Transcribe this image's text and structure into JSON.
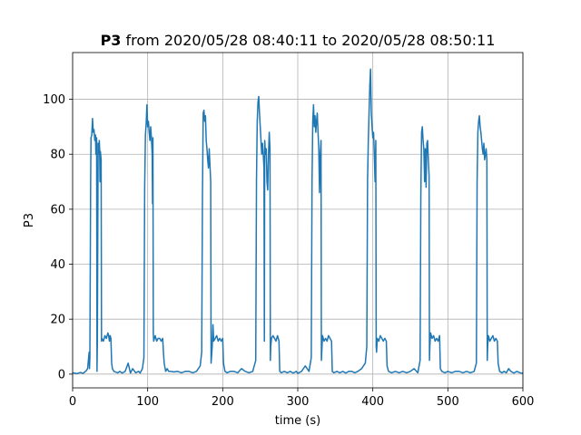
{
  "chart_data": {
    "type": "line",
    "title_bold": "P3",
    "title_rest": " from 2020/05/28 08:40:11 to 2020/05/28 08:50:11",
    "xlabel": "time (s)",
    "ylabel": "P3",
    "xlim": [
      0,
      600
    ],
    "ylim": [
      -5,
      117
    ],
    "xticks": [
      0,
      100,
      200,
      300,
      400,
      500,
      600
    ],
    "yticks": [
      0,
      20,
      40,
      60,
      80,
      100
    ],
    "grid": true,
    "series": [
      {
        "color": "#1f77b4",
        "points": [
          [
            0,
            0.5
          ],
          [
            6,
            0.2
          ],
          [
            10,
            0.6
          ],
          [
            14,
            0.3
          ],
          [
            18,
            1.2
          ],
          [
            20,
            2
          ],
          [
            21,
            5
          ],
          [
            22,
            8
          ],
          [
            22.5,
            2
          ],
          [
            23,
            6
          ],
          [
            24,
            70
          ],
          [
            24.5,
            86
          ],
          [
            25.5,
            87
          ],
          [
            26.5,
            93
          ],
          [
            27.5,
            88
          ],
          [
            28.5,
            89
          ],
          [
            29.5,
            85
          ],
          [
            30.5,
            87
          ],
          [
            31,
            80
          ],
          [
            32,
            86
          ],
          [
            32.5,
            1
          ],
          [
            33,
            12
          ],
          [
            34,
            84
          ],
          [
            35,
            80
          ],
          [
            35.5,
            85
          ],
          [
            36,
            82
          ],
          [
            36.5,
            70
          ],
          [
            37,
            81
          ],
          [
            38,
            78
          ],
          [
            38.5,
            12
          ],
          [
            39,
            13
          ],
          [
            41,
            12
          ],
          [
            43,
            14
          ],
          [
            45,
            13
          ],
          [
            47,
            15
          ],
          [
            48,
            14
          ],
          [
            49,
            12
          ],
          [
            50,
            14
          ],
          [
            51,
            13
          ],
          [
            52,
            4
          ],
          [
            53,
            2
          ],
          [
            55,
            1
          ],
          [
            57,
            0.8
          ],
          [
            60,
            0.5
          ],
          [
            63,
            1
          ],
          [
            66,
            0.4
          ],
          [
            70,
            1
          ],
          [
            74,
            4
          ],
          [
            77,
            0.4
          ],
          [
            80,
            2
          ],
          [
            84,
            0.5
          ],
          [
            88,
            1
          ],
          [
            90,
            0.4
          ],
          [
            93,
            2
          ],
          [
            95,
            6
          ],
          [
            96,
            68
          ],
          [
            97,
            87
          ],
          [
            98,
            91
          ],
          [
            99,
            98
          ],
          [
            100,
            90
          ],
          [
            101,
            92
          ],
          [
            102,
            88
          ],
          [
            103,
            85
          ],
          [
            104,
            90
          ],
          [
            105,
            86
          ],
          [
            106,
            80
          ],
          [
            106.5,
            62
          ],
          [
            107,
            86
          ],
          [
            107.5,
            15
          ],
          [
            108,
            12
          ],
          [
            110,
            14
          ],
          [
            112,
            12
          ],
          [
            114,
            13
          ],
          [
            116,
            13
          ],
          [
            118,
            12
          ],
          [
            120,
            13
          ],
          [
            121,
            8
          ],
          [
            122,
            4
          ],
          [
            124,
            1
          ],
          [
            126,
            2
          ],
          [
            128,
            1
          ],
          [
            130,
            1
          ],
          [
            135,
            0.8
          ],
          [
            140,
            1
          ],
          [
            145,
            0.5
          ],
          [
            150,
            1
          ],
          [
            155,
            1
          ],
          [
            160,
            0.5
          ],
          [
            165,
            1
          ],
          [
            170,
            3
          ],
          [
            172,
            8
          ],
          [
            173,
            65
          ],
          [
            174,
            95
          ],
          [
            175,
            96
          ],
          [
            176,
            92
          ],
          [
            177,
            94
          ],
          [
            178,
            85
          ],
          [
            179,
            82
          ],
          [
            180,
            78
          ],
          [
            181,
            75
          ],
          [
            182,
            82
          ],
          [
            183,
            76
          ],
          [
            184,
            70
          ],
          [
            184.5,
            4
          ],
          [
            186,
            10
          ],
          [
            187,
            18
          ],
          [
            188,
            12
          ],
          [
            190,
            13
          ],
          [
            192,
            14
          ],
          [
            194,
            12
          ],
          [
            196,
            13
          ],
          [
            198,
            12
          ],
          [
            200,
            13
          ],
          [
            201,
            4
          ],
          [
            203,
            1
          ],
          [
            206,
            0.5
          ],
          [
            210,
            1
          ],
          [
            215,
            1
          ],
          [
            220,
            0.5
          ],
          [
            225,
            2
          ],
          [
            230,
            1
          ],
          [
            235,
            0.5
          ],
          [
            240,
            1
          ],
          [
            244,
            5
          ],
          [
            245,
            70
          ],
          [
            246,
            92
          ],
          [
            247,
            99
          ],
          [
            248,
            101
          ],
          [
            249,
            95
          ],
          [
            250,
            90
          ],
          [
            251,
            85
          ],
          [
            252,
            80
          ],
          [
            253,
            84
          ],
          [
            254,
            80
          ],
          [
            255,
            75
          ],
          [
            255.5,
            12
          ],
          [
            256,
            85
          ],
          [
            257,
            80
          ],
          [
            258,
            82
          ],
          [
            259,
            70
          ],
          [
            260,
            67
          ],
          [
            261,
            80
          ],
          [
            262,
            88
          ],
          [
            263,
            82
          ],
          [
            263.5,
            5
          ],
          [
            264,
            10
          ],
          [
            265,
            13
          ],
          [
            267,
            14
          ],
          [
            269,
            13
          ],
          [
            271,
            12
          ],
          [
            273,
            14
          ],
          [
            275,
            12
          ],
          [
            276,
            1
          ],
          [
            278,
            0.5
          ],
          [
            282,
            1
          ],
          [
            286,
            0.5
          ],
          [
            290,
            1
          ],
          [
            294,
            0.4
          ],
          [
            298,
            1
          ],
          [
            300,
            0.3
          ],
          [
            305,
            1
          ],
          [
            310,
            3
          ],
          [
            315,
            1
          ],
          [
            318,
            6
          ],
          [
            319,
            70
          ],
          [
            320,
            92
          ],
          [
            321,
            98
          ],
          [
            322,
            90
          ],
          [
            323,
            94
          ],
          [
            324,
            88
          ],
          [
            325,
            92
          ],
          [
            326,
            95
          ],
          [
            327,
            88
          ],
          [
            328,
            82
          ],
          [
            329,
            66
          ],
          [
            330,
            80
          ],
          [
            331,
            85
          ],
          [
            331.5,
            5
          ],
          [
            332,
            8
          ],
          [
            333,
            14
          ],
          [
            335,
            12
          ],
          [
            337,
            13
          ],
          [
            339,
            12
          ],
          [
            341,
            14
          ],
          [
            343,
            13
          ],
          [
            345,
            12
          ],
          [
            346,
            1
          ],
          [
            348,
            0.5
          ],
          [
            352,
            1
          ],
          [
            356,
            0.5
          ],
          [
            360,
            1
          ],
          [
            364,
            0.4
          ],
          [
            368,
            1
          ],
          [
            372,
            1
          ],
          [
            376,
            0.5
          ],
          [
            380,
            1
          ],
          [
            385,
            2
          ],
          [
            390,
            4
          ],
          [
            392,
            10
          ],
          [
            393,
            70
          ],
          [
            394,
            85
          ],
          [
            395,
            95
          ],
          [
            396,
            105
          ],
          [
            397,
            111
          ],
          [
            398,
            95
          ],
          [
            399,
            90
          ],
          [
            400,
            86
          ],
          [
            401,
            88
          ],
          [
            402,
            80
          ],
          [
            403,
            70
          ],
          [
            404,
            85
          ],
          [
            404.5,
            10
          ],
          [
            405,
            8
          ],
          [
            406,
            13
          ],
          [
            408,
            12
          ],
          [
            410,
            14
          ],
          [
            412,
            13
          ],
          [
            414,
            12
          ],
          [
            416,
            13
          ],
          [
            418,
            12
          ],
          [
            419,
            3
          ],
          [
            421,
            1
          ],
          [
            425,
            0.5
          ],
          [
            430,
            1
          ],
          [
            435,
            0.5
          ],
          [
            440,
            1
          ],
          [
            445,
            0.5
          ],
          [
            450,
            1
          ],
          [
            455,
            2
          ],
          [
            460,
            0.5
          ],
          [
            463,
            5
          ],
          [
            464,
            65
          ],
          [
            465,
            88
          ],
          [
            466,
            90
          ],
          [
            467,
            85
          ],
          [
            468,
            82
          ],
          [
            469,
            70
          ],
          [
            470,
            82
          ],
          [
            471,
            68
          ],
          [
            472,
            84
          ],
          [
            473,
            85
          ],
          [
            474,
            78
          ],
          [
            475,
            72
          ],
          [
            475.5,
            5
          ],
          [
            476,
            10
          ],
          [
            477,
            15
          ],
          [
            479,
            13
          ],
          [
            481,
            14
          ],
          [
            483,
            12
          ],
          [
            485,
            13
          ],
          [
            487,
            12
          ],
          [
            489,
            14
          ],
          [
            490,
            2
          ],
          [
            492,
            1
          ],
          [
            496,
            0.5
          ],
          [
            500,
            1
          ],
          [
            505,
            0.5
          ],
          [
            510,
            1
          ],
          [
            515,
            1
          ],
          [
            520,
            0.5
          ],
          [
            525,
            1
          ],
          [
            530,
            0.5
          ],
          [
            535,
            1
          ],
          [
            538,
            4
          ],
          [
            539,
            70
          ],
          [
            540,
            88
          ],
          [
            541,
            92
          ],
          [
            542,
            94
          ],
          [
            543,
            90
          ],
          [
            544,
            88
          ],
          [
            545,
            85
          ],
          [
            546,
            82
          ],
          [
            547,
            80
          ],
          [
            548,
            84
          ],
          [
            549,
            78
          ],
          [
            550,
            80
          ],
          [
            551,
            82
          ],
          [
            552,
            78
          ],
          [
            552.5,
            5
          ],
          [
            553,
            10
          ],
          [
            554,
            14
          ],
          [
            556,
            12
          ],
          [
            558,
            13
          ],
          [
            560,
            14
          ],
          [
            562,
            12
          ],
          [
            564,
            13
          ],
          [
            566,
            12
          ],
          [
            567,
            4
          ],
          [
            569,
            1
          ],
          [
            572,
            0.5
          ],
          [
            575,
            1
          ],
          [
            578,
            0.5
          ],
          [
            581,
            2
          ],
          [
            584,
            1
          ],
          [
            588,
            0.4
          ],
          [
            592,
            1
          ],
          [
            596,
            0.5
          ],
          [
            600,
            0.3
          ]
        ]
      }
    ]
  }
}
